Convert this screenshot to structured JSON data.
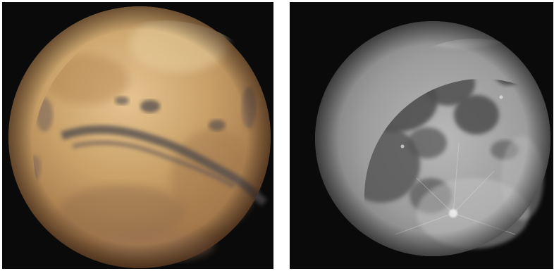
{
  "panels": [
    {
      "id": "mars",
      "subject": "mars-photo",
      "background": "#0a0a0a",
      "colors": {
        "base": "#c49a62",
        "highlight": "#e6c490",
        "shadow": "#6e4a2c",
        "dark_terrain": "#5a4a48"
      }
    },
    {
      "id": "moon",
      "subject": "moon-photo",
      "background": "#0a0a0a",
      "colors": {
        "base": "#9a9a9a",
        "highlight": "#d2d2d2",
        "shadow": "#3a3a3a",
        "maria": "#4a4a4a"
      }
    }
  ]
}
